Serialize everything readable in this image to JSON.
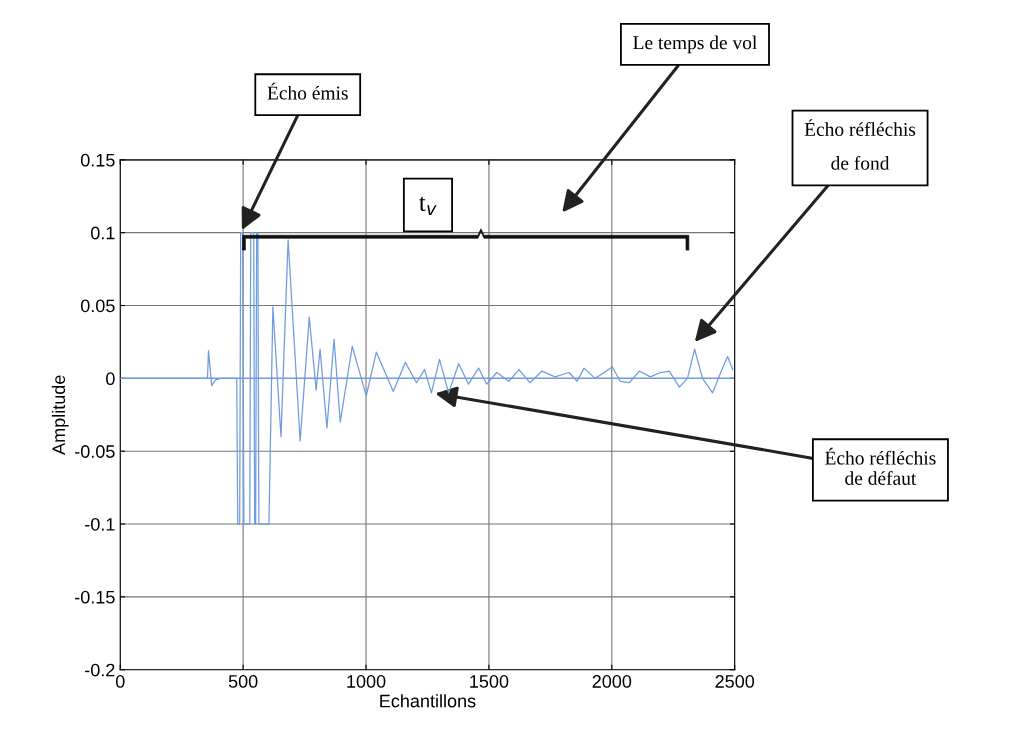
{
  "chart_data": {
    "type": "line",
    "xlabel": "Echantillons",
    "ylabel": "Amplitude",
    "xlim": [
      0,
      2500
    ],
    "xticks": [
      0,
      500,
      1000,
      1500,
      2000,
      2500
    ],
    "ylim": [
      -0.2,
      0.15
    ],
    "yticks": [
      -0.2,
      -0.15,
      -0.1,
      -0.05,
      0,
      0.05,
      0.1,
      0.15
    ],
    "grid": true,
    "marker": "none",
    "line_style": "solid",
    "series": [
      {
        "color": "#6f9be0",
        "x": [
          0,
          355,
          359,
          372,
          388,
          408,
          474,
          478,
          486,
          490,
          498,
          503,
          527,
          531,
          543,
          547,
          551,
          555,
          560,
          564,
          605,
          621,
          654,
          683,
          732,
          769,
          797,
          813,
          841,
          870,
          895,
          944,
          1001,
          1042,
          1111,
          1160,
          1205,
          1238,
          1266,
          1299,
          1336,
          1377,
          1417,
          1458,
          1491,
          1532,
          1581,
          1622,
          1667,
          1716,
          1769,
          1826,
          1859,
          1887,
          1932,
          1969,
          2002,
          2034,
          2071,
          2112,
          2157,
          2198,
          2234,
          2275,
          2308,
          2337,
          2369,
          2410,
          2443,
          2471,
          2492
        ],
        "values": [
          0,
          0,
          0.019,
          -0.005,
          -0.001,
          0,
          0,
          -0.1,
          -0.1,
          0.1,
          0.1,
          -0.1,
          -0.1,
          0.1,
          0.1,
          -0.1,
          -0.1,
          0.1,
          0.1,
          -0.1,
          -0.1,
          0.049,
          -0.04,
          0.095,
          -0.043,
          0.042,
          -0.008,
          0.02,
          -0.034,
          0.027,
          -0.03,
          0.022,
          -0.012,
          0.018,
          -0.009,
          0.011,
          -0.003,
          0.006,
          -0.01,
          0.013,
          -0.01,
          0.01,
          -0.004,
          0.007,
          -0.004,
          0.004,
          -0.002,
          0.006,
          -0.003,
          0.005,
          0.001,
          0.004,
          -0.002,
          0.007,
          0,
          0.004,
          0.008,
          -0.002,
          -0.003,
          0.005,
          0.001,
          0.004,
          0.005,
          -0.006,
          0,
          0.02,
          0,
          -0.01,
          0.004,
          0.015,
          0.006
        ]
      }
    ],
    "ref_lines": [
      {
        "axis": "y",
        "value": 0,
        "color": "#6f9be0"
      }
    ],
    "annotations": [
      {
        "text": "Écho émis",
        "x": 490,
        "y": 0.1
      },
      "Le temps de vol",
      "Écho réfléchis\nde fond",
      {
        "text": "Écho réfléchis\nde défaut",
        "x": 1270,
        "y": -0.01
      },
      "t$_{v}$"
    ]
  }
}
